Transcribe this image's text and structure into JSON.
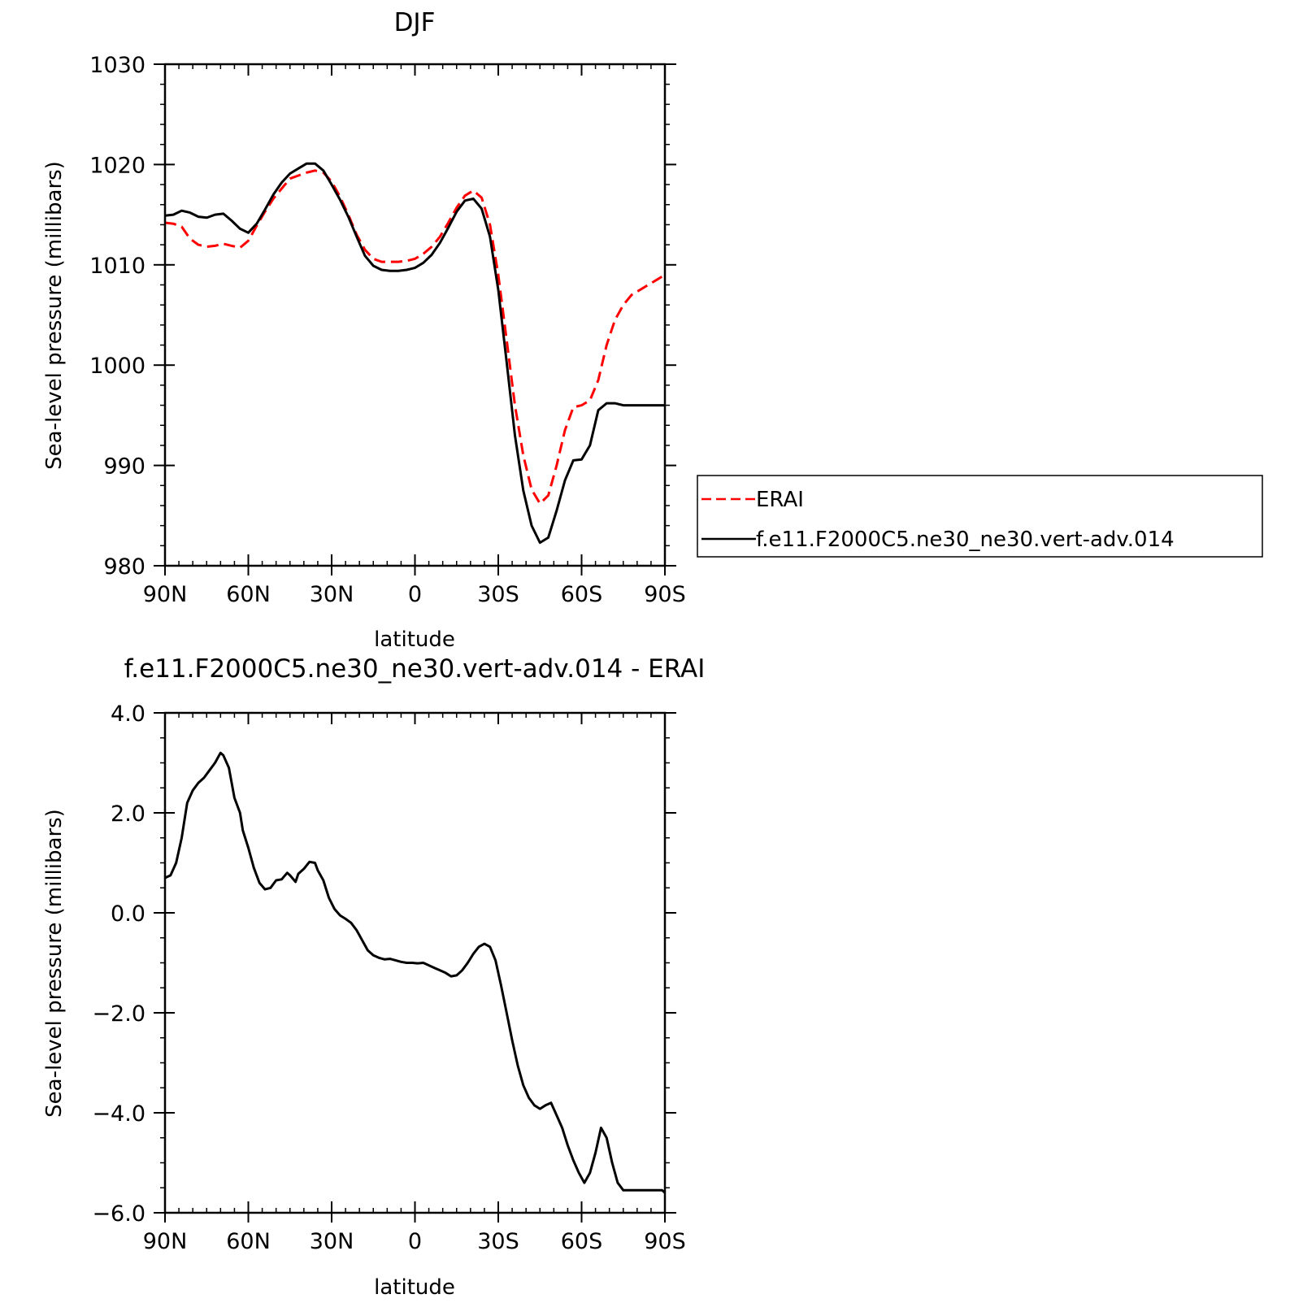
{
  "chart_data": [
    {
      "type": "line",
      "title": "DJF",
      "xlabel": "latitude",
      "ylabel": "Sea-level pressure (millibars)",
      "xlim": [
        90,
        -90
      ],
      "ylim": [
        980,
        1030
      ],
      "xticks": [
        {
          "value": 90,
          "label": "90N"
        },
        {
          "value": 60,
          "label": "60N"
        },
        {
          "value": 30,
          "label": "30N"
        },
        {
          "value": 0,
          "label": "0"
        },
        {
          "value": -30,
          "label": "30S"
        },
        {
          "value": -60,
          "label": "60S"
        },
        {
          "value": -90,
          "label": "90S"
        }
      ],
      "yticks": [
        {
          "value": 980,
          "label": "980"
        },
        {
          "value": 990,
          "label": "990"
        },
        {
          "value": 1000,
          "label": "1000"
        },
        {
          "value": 1010,
          "label": "1010"
        },
        {
          "value": 1020,
          "label": "1020"
        },
        {
          "value": 1030,
          "label": "1030"
        }
      ],
      "legend": {
        "placement": "right",
        "entries": [
          {
            "name": "ERAI",
            "color": "#ff0000",
            "dash": true
          },
          {
            "name": "f.e11.F2000C5.ne30_ne30.vert-adv.014",
            "color": "#000000",
            "dash": false
          }
        ]
      },
      "series": [
        {
          "name": "ERAI",
          "color": "#ff0000",
          "dash": true,
          "x": [
            90,
            87,
            84,
            81,
            78,
            75,
            72,
            69,
            66,
            63,
            60,
            57,
            54,
            51,
            48,
            45,
            42,
            39,
            36,
            33,
            30,
            27,
            24,
            21,
            18,
            15,
            12,
            9,
            6,
            3,
            0,
            -3,
            -6,
            -9,
            -12,
            -15,
            -18,
            -21,
            -24,
            -27,
            -30,
            -33,
            -36,
            -39,
            -42,
            -45,
            -48,
            -51,
            -54,
            -57,
            -60,
            -63,
            -66,
            -69,
            -72,
            -75,
            -78,
            -81,
            -84,
            -87,
            -90
          ],
          "y": [
            1014.2,
            1014.1,
            1013.8,
            1012.6,
            1012.0,
            1011.8,
            1011.9,
            1012.1,
            1011.9,
            1011.7,
            1012.4,
            1013.9,
            1015.3,
            1016.6,
            1017.6,
            1018.6,
            1018.9,
            1019.2,
            1019.4,
            1019.2,
            1018.3,
            1016.8,
            1015.0,
            1013.0,
            1011.5,
            1010.6,
            1010.3,
            1010.3,
            1010.3,
            1010.4,
            1010.6,
            1011.1,
            1011.8,
            1012.8,
            1014.2,
            1015.7,
            1016.9,
            1017.4,
            1016.7,
            1014.0,
            1009.0,
            1002.5,
            996.0,
            991.0,
            987.6,
            986.2,
            987.0,
            990.0,
            993.5,
            995.8,
            996.0,
            996.5,
            998.5,
            1002.0,
            1004.5,
            1006.0,
            1007.0,
            1007.5,
            1008.0,
            1008.5,
            1009.0
          ]
        },
        {
          "name": "f.e11.F2000C5.ne30_ne30.vert-adv.014",
          "color": "#000000",
          "dash": false,
          "x": [
            90,
            87,
            84,
            81,
            78,
            75,
            72,
            69,
            66,
            63,
            60,
            57,
            54,
            51,
            48,
            45,
            42,
            39,
            36,
            33,
            30,
            27,
            24,
            21,
            18,
            15,
            12,
            9,
            6,
            3,
            0,
            -3,
            -6,
            -9,
            -12,
            -15,
            -18,
            -21,
            -24,
            -27,
            -30,
            -33,
            -36,
            -39,
            -42,
            -45,
            -48,
            -51,
            -54,
            -57,
            -60,
            -63,
            -66,
            -69,
            -72,
            -75,
            -78,
            -81,
            -84,
            -87,
            -90
          ],
          "y": [
            1014.9,
            1015.0,
            1015.4,
            1015.2,
            1014.8,
            1014.7,
            1015.0,
            1015.1,
            1014.4,
            1013.6,
            1013.2,
            1014.1,
            1015.5,
            1017.0,
            1018.2,
            1019.1,
            1019.6,
            1020.1,
            1020.1,
            1019.4,
            1018.0,
            1016.5,
            1014.8,
            1012.8,
            1010.9,
            1009.9,
            1009.5,
            1009.4,
            1009.4,
            1009.5,
            1009.7,
            1010.2,
            1011.0,
            1012.2,
            1013.7,
            1015.3,
            1016.4,
            1016.6,
            1015.6,
            1012.8,
            1007.5,
            1000.3,
            993.0,
            987.5,
            984.0,
            982.3,
            982.8,
            985.5,
            988.5,
            990.5,
            990.6,
            992.0,
            995.5,
            996.2,
            996.2,
            996.0,
            996.0,
            996.0,
            996.0,
            996.0,
            996.0
          ]
        }
      ]
    },
    {
      "type": "line",
      "title": "f.e11.F2000C5.ne30_ne30.vert-adv.014 - ERAI",
      "xlabel": "latitude",
      "ylabel": "Sea-level pressure (millibars)",
      "xlim": [
        90,
        -90
      ],
      "ylim": [
        -6.0,
        4.0
      ],
      "xticks": [
        {
          "value": 90,
          "label": "90N"
        },
        {
          "value": 60,
          "label": "60N"
        },
        {
          "value": 30,
          "label": "30N"
        },
        {
          "value": 0,
          "label": "0"
        },
        {
          "value": -30,
          "label": "30S"
        },
        {
          "value": -60,
          "label": "60S"
        },
        {
          "value": -90,
          "label": "90S"
        }
      ],
      "yticks": [
        {
          "value": -6.0,
          "label": "-6.0"
        },
        {
          "value": -4.0,
          "label": "-4.0"
        },
        {
          "value": -2.0,
          "label": "-2.0"
        },
        {
          "value": 0.0,
          "label": "0.0"
        },
        {
          "value": 2.0,
          "label": "2.0"
        },
        {
          "value": 4.0,
          "label": "4.0"
        }
      ],
      "series": [
        {
          "color": "#000000",
          "dash": false,
          "x": [
            90,
            88,
            86,
            84,
            82,
            80,
            78,
            76,
            74,
            72,
            70,
            69,
            67,
            65,
            63,
            62,
            60,
            58,
            56,
            54,
            52,
            50,
            48,
            46,
            45,
            43,
            42,
            40,
            38,
            36,
            35,
            33,
            31,
            29,
            27,
            25,
            23,
            21,
            19,
            17,
            15,
            13,
            11,
            9,
            7,
            5,
            3,
            1,
            -1,
            -3,
            -5,
            -7,
            -9,
            -11,
            -13,
            -15,
            -17,
            -19,
            -21,
            -23,
            -25,
            -27,
            -29,
            -31,
            -33,
            -35,
            -37,
            -39,
            -41,
            -43,
            -45,
            -47,
            -49,
            -51,
            -53,
            -55,
            -57,
            -59,
            -61,
            -63,
            -65,
            -67,
            -69,
            -71,
            -73,
            -75,
            -77,
            -79,
            -81,
            -83,
            -85,
            -87,
            -89,
            -90
          ],
          "y": [
            0.7,
            0.75,
            1.0,
            1.5,
            2.2,
            2.45,
            2.6,
            2.7,
            2.85,
            3.0,
            3.2,
            3.15,
            2.9,
            2.3,
            2.0,
            1.65,
            1.3,
            0.9,
            0.6,
            0.47,
            0.5,
            0.65,
            0.67,
            0.8,
            0.75,
            0.62,
            0.78,
            0.88,
            1.02,
            1.0,
            0.85,
            0.65,
            0.3,
            0.08,
            -0.05,
            -0.12,
            -0.2,
            -0.35,
            -0.55,
            -0.75,
            -0.85,
            -0.9,
            -0.93,
            -0.92,
            -0.95,
            -0.98,
            -1.0,
            -1.0,
            -1.01,
            -1.0,
            -1.05,
            -1.1,
            -1.15,
            -1.2,
            -1.27,
            -1.25,
            -1.15,
            -1.0,
            -0.82,
            -0.68,
            -0.62,
            -0.68,
            -0.95,
            -1.45,
            -2.0,
            -2.55,
            -3.05,
            -3.45,
            -3.7,
            -3.85,
            -3.92,
            -3.85,
            -3.8,
            -4.05,
            -4.3,
            -4.65,
            -4.95,
            -5.2,
            -5.4,
            -5.2,
            -4.8,
            -4.3,
            -4.5,
            -5.0,
            -5.4,
            -5.55,
            -5.55,
            -5.55,
            -5.55,
            -5.55,
            -5.55,
            -5.55,
            -5.55,
            -5.6
          ]
        }
      ]
    }
  ]
}
